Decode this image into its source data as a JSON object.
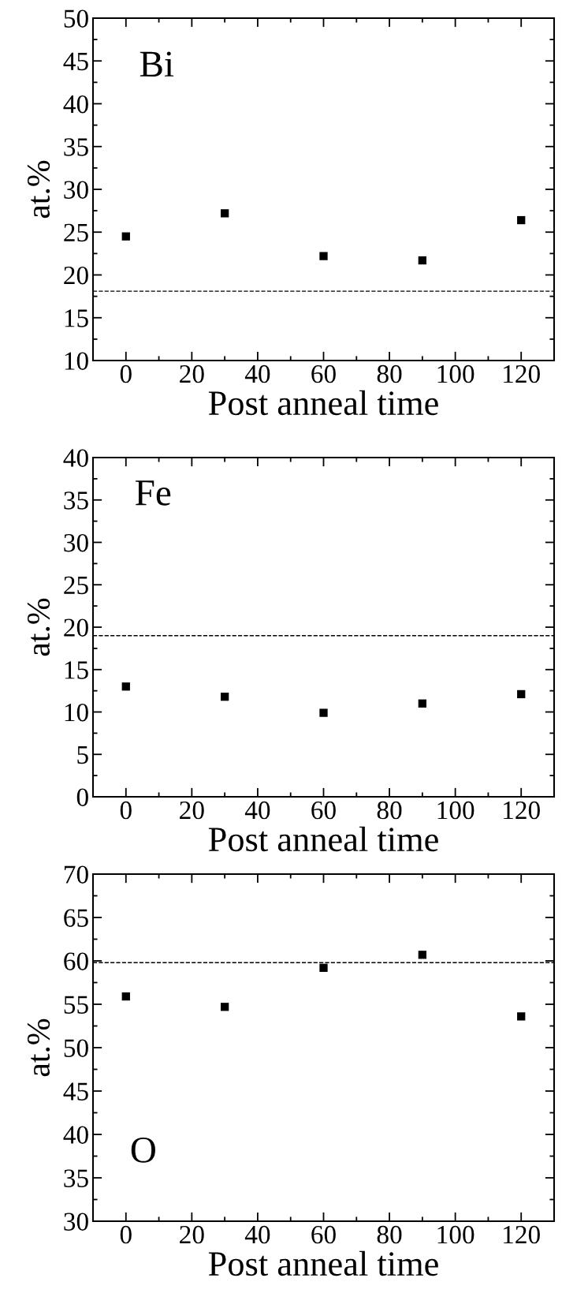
{
  "chart_data": [
    {
      "type": "scatter",
      "annotations": [
        "Bi"
      ],
      "xlabel": "Post anneal time",
      "ylabel": "at.%",
      "x": [
        0,
        30,
        60,
        90,
        120
      ],
      "series": [
        {
          "color": "#000000",
          "values": [
            24.5,
            27.2,
            22.2,
            21.7,
            26.4
          ]
        }
      ],
      "marker": "square",
      "xlim": [
        -10,
        130
      ],
      "xticks": [
        0,
        20,
        40,
        60,
        80,
        100,
        120
      ],
      "ylim": [
        10,
        50
      ],
      "yticks": [
        10,
        15,
        20,
        25,
        30,
        35,
        40,
        45,
        50
      ],
      "ref_lines": [
        {
          "axis": "y",
          "value": 18.1,
          "color": "#000000",
          "line_style": "dashed"
        }
      ],
      "grid": false,
      "legend": false
    },
    {
      "type": "scatter",
      "annotations": [
        "Fe"
      ],
      "xlabel": "Post anneal time",
      "ylabel": "at.%",
      "x": [
        0,
        30,
        60,
        90,
        120
      ],
      "series": [
        {
          "color": "#000000",
          "values": [
            13.0,
            11.8,
            9.9,
            11.0,
            12.1
          ]
        }
      ],
      "marker": "square",
      "xlim": [
        -10,
        130
      ],
      "xticks": [
        0,
        20,
        40,
        60,
        80,
        100,
        120
      ],
      "ylim": [
        0,
        40
      ],
      "yticks": [
        0,
        5,
        10,
        15,
        20,
        25,
        30,
        35,
        40
      ],
      "ref_lines": [
        {
          "axis": "y",
          "value": 19.0,
          "color": "#000000",
          "line_style": "dashed"
        }
      ],
      "grid": false,
      "legend": false
    },
    {
      "type": "scatter",
      "annotations": [
        "O"
      ],
      "xlabel": "Post anneal time",
      "ylabel": "at.%",
      "x": [
        0,
        30,
        60,
        90,
        120
      ],
      "series": [
        {
          "color": "#000000",
          "values": [
            55.9,
            54.7,
            59.2,
            60.7,
            53.6
          ]
        }
      ],
      "marker": "square",
      "xlim": [
        -10,
        130
      ],
      "xticks": [
        0,
        20,
        40,
        60,
        80,
        100,
        120
      ],
      "ylim": [
        30,
        70
      ],
      "yticks": [
        30,
        35,
        40,
        45,
        50,
        55,
        60,
        65,
        70
      ],
      "ref_lines": [
        {
          "axis": "y",
          "value": 59.8,
          "color": "#000000",
          "line_style": "dashed"
        }
      ],
      "grid": false,
      "legend": false
    }
  ]
}
